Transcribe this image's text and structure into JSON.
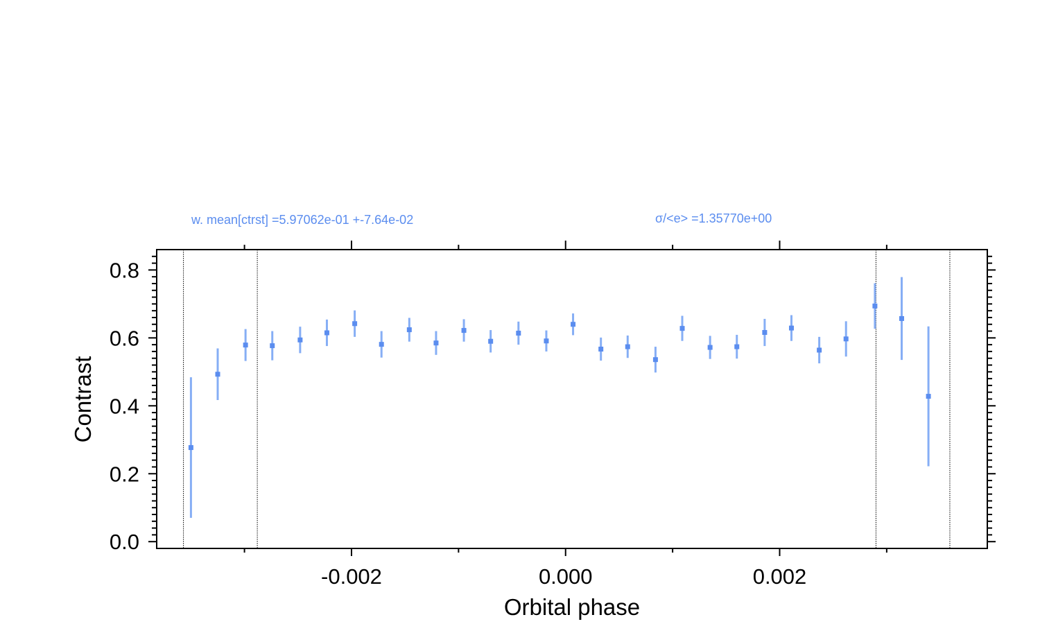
{
  "chart_data": {
    "type": "scatter",
    "xlabel": "Orbital phase",
    "ylabel": "Contrast",
    "xlim": [
      -0.00382,
      0.00394
    ],
    "ylim": [
      -0.02,
      0.86
    ],
    "x_ticks": [
      -0.002,
      0.0,
      0.002
    ],
    "x_tick_labels": [
      "-0.002",
      "0.000",
      "0.002"
    ],
    "x_minor_ticks": [
      -0.003,
      -0.001,
      0.001,
      0.003
    ],
    "y_ticks": [
      0.0,
      0.2,
      0.4,
      0.6,
      0.8
    ],
    "y_tick_labels": [
      "0.0",
      "0.2",
      "0.4",
      "0.6",
      "0.8"
    ],
    "grid": false,
    "marker_color": "#5b8def",
    "errorbar_color": "#86aef5",
    "annotations": [
      {
        "text": "w. mean[ctrst] =5.97062e-01 +-7.64e-02"
      },
      {
        "text": "σ/<e> =1.35770e+00"
      }
    ],
    "vertical_lines": [
      -0.00357,
      -0.00288,
      0.0029,
      0.00359
    ],
    "series": [
      {
        "points": [
          {
            "x": -0.0035,
            "y": 0.277,
            "err": 0.207
          },
          {
            "x": -0.00325,
            "y": 0.493,
            "err": 0.076
          },
          {
            "x": -0.00299,
            "y": 0.579,
            "err": 0.047
          },
          {
            "x": -0.00274,
            "y": 0.577,
            "err": 0.043
          },
          {
            "x": -0.00248,
            "y": 0.594,
            "err": 0.039
          },
          {
            "x": -0.00223,
            "y": 0.615,
            "err": 0.039
          },
          {
            "x": -0.00197,
            "y": 0.642,
            "err": 0.039
          },
          {
            "x": -0.00172,
            "y": 0.581,
            "err": 0.039
          },
          {
            "x": -0.00146,
            "y": 0.624,
            "err": 0.035
          },
          {
            "x": -0.00121,
            "y": 0.585,
            "err": 0.035
          },
          {
            "x": -0.00095,
            "y": 0.622,
            "err": 0.033
          },
          {
            "x": -0.0007,
            "y": 0.59,
            "err": 0.033
          },
          {
            "x": -0.00044,
            "y": 0.614,
            "err": 0.034
          },
          {
            "x": -0.00018,
            "y": 0.591,
            "err": 0.031
          },
          {
            "x": 7e-05,
            "y": 0.64,
            "err": 0.032
          },
          {
            "x": 0.00033,
            "y": 0.567,
            "err": 0.034
          },
          {
            "x": 0.00058,
            "y": 0.574,
            "err": 0.033
          },
          {
            "x": 0.00084,
            "y": 0.536,
            "err": 0.038
          },
          {
            "x": 0.00109,
            "y": 0.628,
            "err": 0.037
          },
          {
            "x": 0.00135,
            "y": 0.572,
            "err": 0.034
          },
          {
            "x": 0.0016,
            "y": 0.574,
            "err": 0.035
          },
          {
            "x": 0.00186,
            "y": 0.616,
            "err": 0.04
          },
          {
            "x": 0.00211,
            "y": 0.629,
            "err": 0.038
          },
          {
            "x": 0.00237,
            "y": 0.564,
            "err": 0.039
          },
          {
            "x": 0.00262,
            "y": 0.597,
            "err": 0.052
          },
          {
            "x": 0.00289,
            "y": 0.694,
            "err": 0.067
          },
          {
            "x": 0.00314,
            "y": 0.657,
            "err": 0.122
          },
          {
            "x": 0.00339,
            "y": 0.428,
            "err": 0.206
          }
        ]
      }
    ]
  }
}
